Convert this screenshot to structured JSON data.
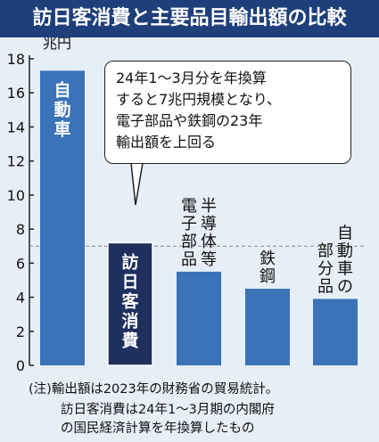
{
  "title": "訪日客消費と主要品目輸出額の比較",
  "callout_lines": [
    "24年1～3月分を年換算",
    "すると7兆円規模となり、",
    "電子部品や鉄鋼の23年",
    "輸出額を上回る"
  ],
  "footnote_lines": [
    "(注)輸出額は2023年の財務省の貿易統計。",
    "訪日客消費は24年1～3月期の内閣府",
    "の国民経済計算を年換算したもの"
  ],
  "colors": {
    "title_bg": "#1f3f7a",
    "background": "#e6eff8",
    "bar_primary": "#3a73b8",
    "bar_highlight": "#1f2f5e",
    "reference_line": "#888888"
  },
  "chart_data": {
    "type": "bar",
    "unit_label": "兆円",
    "ylim": [
      0,
      18
    ],
    "yticks": [
      0,
      2,
      4,
      6,
      8,
      10,
      12,
      14,
      16,
      18
    ],
    "reference_line": 7,
    "grid": false,
    "bars": [
      {
        "label": "自動車",
        "value": 17.3,
        "label_position": "inside",
        "highlight": false
      },
      {
        "label": "訪日客消費",
        "value": 7.2,
        "label_position": "inside",
        "highlight": true
      },
      {
        "label": "電子部品半導体等",
        "columns": [
          "電子部品",
          "半導体等"
        ],
        "value": 5.5,
        "label_position": "above",
        "highlight": false
      },
      {
        "label": "鉄鋼",
        "columns": [
          "鉄鋼"
        ],
        "value": 4.5,
        "label_position": "above",
        "highlight": false
      },
      {
        "label": "自動車の部分品",
        "columns": [
          "部分品",
          "自動車の"
        ],
        "value": 3.9,
        "label_position": "above",
        "highlight": false
      }
    ]
  }
}
